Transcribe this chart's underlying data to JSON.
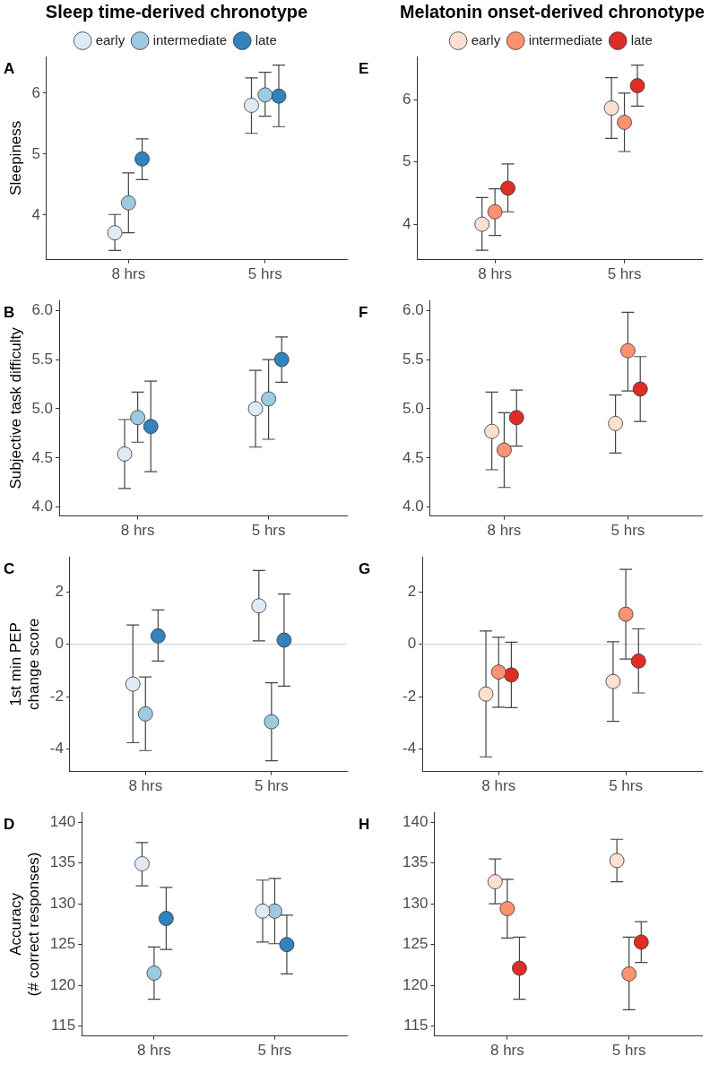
{
  "chart_data": [
    {
      "type": "scatter",
      "title": "Sleep time-derived chronotype",
      "ylabel": "Sleepiness",
      "annotations": [
        "A"
      ],
      "categories": [
        "8 hrs",
        "5 hrs"
      ],
      "ylim": [
        3.27,
        6.6
      ],
      "yticks": [
        4,
        5,
        6
      ],
      "grid": false,
      "legend": "top",
      "marker": "circle",
      "series": [
        {
          "name": "early",
          "color": "#deebf7",
          "values": [
            3.71,
            5.8
          ],
          "errors": [
            [
              3.42,
              4.01
            ],
            [
              5.34,
              6.25
            ]
          ]
        },
        {
          "name": "intermediate",
          "color": "#9ecae1",
          "values": [
            4.2,
            5.97
          ],
          "errors": [
            [
              3.71,
              4.69
            ],
            [
              5.62,
              6.34
            ]
          ]
        },
        {
          "name": "late",
          "color": "#3182bd",
          "values": [
            4.92,
            5.95
          ],
          "errors": [
            [
              4.58,
              5.25
            ],
            [
              5.45,
              6.46
            ]
          ]
        }
      ]
    },
    {
      "type": "scatter",
      "title": "Melatonin onset-derived chronotype",
      "annotations": [
        "E"
      ],
      "categories": [
        "8 hrs",
        "5 hrs"
      ],
      "ylim": [
        3.43,
        6.7
      ],
      "yticks": [
        4,
        5,
        6
      ],
      "grid": false,
      "legend": "top",
      "marker": "circle",
      "series": [
        {
          "name": "early",
          "color": "#fee0d2",
          "values": [
            4.0,
            5.87
          ],
          "errors": [
            [
              3.58,
              4.43
            ],
            [
              5.38,
              6.36
            ]
          ]
        },
        {
          "name": "intermediate",
          "color": "#fc9272",
          "values": [
            4.2,
            5.64
          ],
          "errors": [
            [
              3.82,
              4.57
            ],
            [
              5.17,
              6.11
            ]
          ]
        },
        {
          "name": "late",
          "color": "#de2d26",
          "values": [
            4.58,
            6.23
          ],
          "errors": [
            [
              4.2,
              4.97
            ],
            [
              5.9,
              6.56
            ]
          ]
        }
      ]
    },
    {
      "type": "scatter",
      "ylabel": "Subjective task difficulty",
      "annotations": [
        "B"
      ],
      "categories": [
        "8 hrs",
        "5 hrs"
      ],
      "ylim": [
        3.91,
        6.1
      ],
      "yticks": [
        {
          "value": 4,
          "label": "4.0"
        },
        4.5,
        {
          "value": 5,
          "label": "5.0"
        },
        5.5,
        {
          "value": 6,
          "label": "6.0"
        }
      ],
      "grid": false,
      "marker": "circle",
      "series": [
        {
          "color": "#deebf7",
          "values": [
            4.54,
            5.0
          ],
          "errors": [
            [
              4.19,
              4.89
            ],
            [
              4.61,
              5.39
            ]
          ]
        },
        {
          "color": "#9ecae1",
          "values": [
            4.91,
            5.1
          ],
          "errors": [
            [
              4.66,
              5.17
            ],
            [
              4.69,
              5.5
            ]
          ]
        },
        {
          "color": "#3182bd",
          "values": [
            4.82,
            5.5
          ],
          "errors": [
            [
              4.36,
              5.28
            ],
            [
              5.27,
              5.73
            ]
          ]
        }
      ]
    },
    {
      "type": "scatter",
      "annotations": [
        "F"
      ],
      "categories": [
        "8 hrs",
        "5 hrs"
      ],
      "ylim": [
        3.91,
        6.1
      ],
      "yticks": [
        {
          "value": 4,
          "label": "4.0"
        },
        4.5,
        {
          "value": 5,
          "label": "5.0"
        },
        5.5,
        {
          "value": 6,
          "label": "6.0"
        }
      ],
      "grid": false,
      "marker": "circle",
      "series": [
        {
          "color": "#fee0d2",
          "values": [
            4.77,
            4.85
          ],
          "errors": [
            [
              4.38,
              5.17
            ],
            [
              4.55,
              5.14
            ]
          ]
        },
        {
          "color": "#fc9272",
          "values": [
            4.58,
            5.59
          ],
          "errors": [
            [
              4.2,
              4.96
            ],
            [
              5.18,
              5.98
            ]
          ]
        },
        {
          "color": "#de2d26",
          "values": [
            4.91,
            5.2
          ],
          "errors": [
            [
              4.62,
              5.19
            ],
            [
              4.87,
              5.53
            ]
          ]
        }
      ]
    },
    {
      "type": "scatter",
      "ylabel": "1st min PEP\nchange score",
      "annotations": [
        "C"
      ],
      "categories": [
        "8 hrs",
        "5 hrs"
      ],
      "ylim": [
        -4.86,
        3.34
      ],
      "yticks": [
        -4,
        -2,
        0,
        2
      ],
      "grid": false,
      "marker": "circle",
      "ref_lines": [
        {
          "axis": "y",
          "value": 0,
          "color": "#cccccc"
        }
      ],
      "series": [
        {
          "color": "#deebf7",
          "values": [
            -1.52,
            1.47
          ],
          "errors": [
            [
              -3.76,
              0.74
            ],
            [
              0.13,
              2.82
            ]
          ]
        },
        {
          "color": "#9ecae1",
          "values": [
            -2.66,
            -2.96
          ],
          "errors": [
            [
              -4.06,
              -1.25
            ],
            [
              -4.45,
              -1.47
            ]
          ]
        },
        {
          "color": "#3182bd",
          "values": [
            0.32,
            0.16
          ],
          "errors": [
            [
              -0.64,
              1.31
            ],
            [
              -1.6,
              1.92
            ]
          ]
        }
      ]
    },
    {
      "type": "scatter",
      "annotations": [
        "G"
      ],
      "categories": [
        "8 hrs",
        "5 hrs"
      ],
      "ylim": [
        -4.86,
        3.34
      ],
      "yticks": [
        -4,
        -2,
        0,
        2
      ],
      "grid": false,
      "marker": "circle",
      "ref_lines": [
        {
          "axis": "y",
          "value": 0,
          "color": "#cccccc"
        }
      ],
      "series": [
        {
          "color": "#fee0d2",
          "values": [
            -1.9,
            -1.42
          ],
          "errors": [
            [
              -4.3,
              0.51
            ],
            [
              -2.94,
              0.1
            ]
          ]
        },
        {
          "color": "#fc9272",
          "values": [
            -1.06,
            1.15
          ],
          "errors": [
            [
              -2.4,
              0.27
            ],
            [
              -0.56,
              2.86
            ]
          ]
        },
        {
          "color": "#de2d26",
          "values": [
            -1.17,
            -0.64
          ],
          "errors": [
            [
              -2.42,
              0.08
            ],
            [
              -1.86,
              0.59
            ]
          ]
        }
      ]
    },
    {
      "type": "scatter",
      "ylabel": "Accuracy\n(# correct responses)",
      "annotations": [
        "D"
      ],
      "categories": [
        "8 hrs",
        "5 hrs"
      ],
      "ylim": [
        113.8,
        141.2
      ],
      "yticks": [
        115,
        120,
        125,
        130,
        135,
        140
      ],
      "grid": false,
      "marker": "circle",
      "series": [
        {
          "color": "#deebf7",
          "values": [
            134.9,
            129.1
          ],
          "errors": [
            [
              132.2,
              137.5
            ],
            [
              125.3,
              132.9
            ]
          ]
        },
        {
          "color": "#9ecae1",
          "values": [
            121.5,
            129.1
          ],
          "errors": [
            [
              118.3,
              124.7
            ],
            [
              125.1,
              133.1
            ]
          ]
        },
        {
          "color": "#3182bd",
          "values": [
            128.2,
            125.0
          ],
          "errors": [
            [
              124.4,
              132.0
            ],
            [
              121.4,
              128.6
            ]
          ]
        }
      ]
    },
    {
      "type": "scatter",
      "annotations": [
        "H"
      ],
      "categories": [
        "8 hrs",
        "5 hrs"
      ],
      "ylim": [
        113.8,
        141.2
      ],
      "yticks": [
        115,
        120,
        125,
        130,
        135,
        140
      ],
      "grid": false,
      "marker": "circle",
      "series": [
        {
          "color": "#fee0d2",
          "values": [
            132.7,
            135.3
          ],
          "errors": [
            [
              130.0,
              135.5
            ],
            [
              132.7,
              137.9
            ]
          ]
        },
        {
          "color": "#fc9272",
          "values": [
            129.4,
            121.4
          ],
          "errors": [
            [
              125.8,
              133.0
            ],
            [
              117.0,
              125.9
            ]
          ]
        },
        {
          "color": "#de2d26",
          "values": [
            122.1,
            125.3
          ],
          "errors": [
            [
              118.3,
              125.9
            ],
            [
              122.8,
              127.8
            ]
          ]
        }
      ]
    }
  ]
}
